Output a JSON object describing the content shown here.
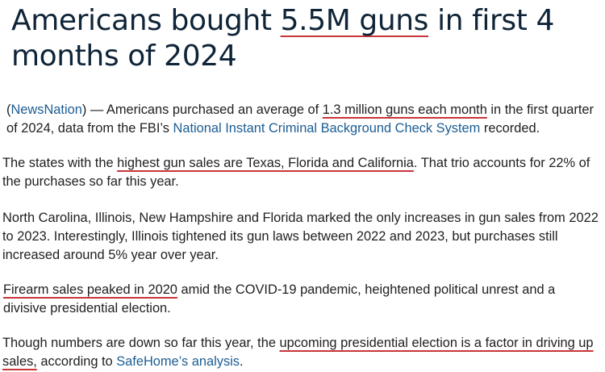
{
  "article": {
    "title_part1": "Americans bought ",
    "title_highlight": "5.5M guns",
    "title_part2": " in first 4 months of 2024"
  },
  "paragraphs": {
    "p1": {
      "open_paren": "(",
      "source_link": "NewsNation",
      "text_a": ") — Americans purchased an average of ",
      "highlight": "1.3 million guns each month",
      "text_b": " in the first quarter of 2024, data from the FBI’s ",
      "nics_link": "National Instant Criminal Background Check System",
      "text_c": " recorded."
    },
    "p2": {
      "text_a": "The states with the ",
      "highlight": "highest gun sales are Texas, Florida and California",
      "text_b": ". That trio accounts for 22% of the purchases so far this year."
    },
    "p3": {
      "text": "North Carolina, Illinois, New Hampshire and Florida marked the only increases in gun sales from 2022 to 2023. Interestingly, Illinois tightened its gun laws between 2022 and 2023, but purchases still increased around 5% year over year."
    },
    "p4": {
      "highlight": "Firearm sales peaked in 2020",
      "text_a": " amid the COVID-19 pandemic, heightened political unrest and a divisive presidential election."
    },
    "p5": {
      "text_a": "Though numbers are down so far this year, the ",
      "highlight": "upcoming presidential election is a factor in driving up sales,",
      "text_b": " according to ",
      "link": "SafeHome’s analysis",
      "text_c": "."
    }
  },
  "colors": {
    "title": "#0f2438",
    "body_text": "#1f1f1f",
    "link": "#1c5d94",
    "underline_mark": "#c8353a"
  }
}
